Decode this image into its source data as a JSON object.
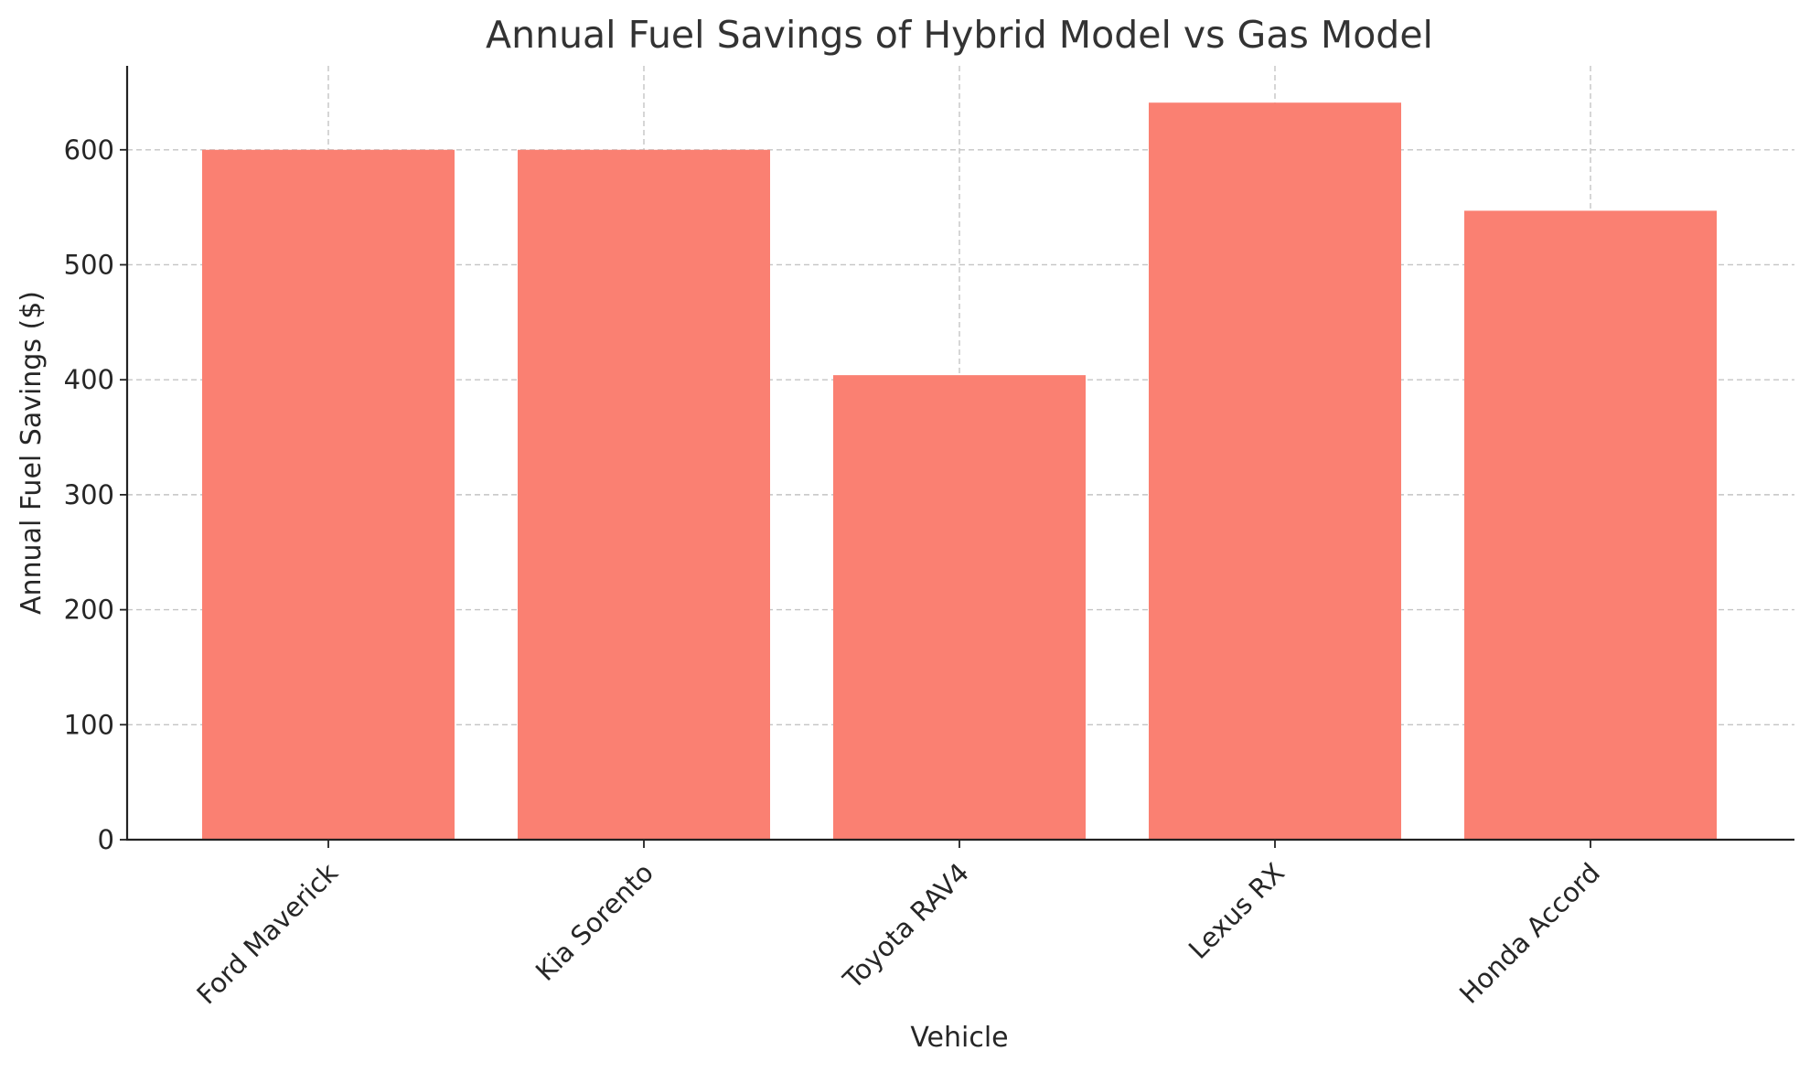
{
  "chart_data": {
    "type": "bar",
    "title": "Annual Fuel Savings of Hybrid Model vs Gas Model",
    "xlabel": "Vehicle",
    "ylabel": "Annual Fuel Savings ($)",
    "categories": [
      "Ford Maverick",
      "Kia Sorento",
      "Toyota RAV4",
      "Lexus RX",
      "Honda Accord"
    ],
    "values": [
      600,
      600,
      404,
      641,
      547
    ],
    "ylim": [
      0,
      673
    ],
    "yticks": [
      "0",
      "100",
      "200",
      "300",
      "400",
      "500",
      "600"
    ],
    "bar_color": "#fa8072",
    "grid": true,
    "spines": [
      "left",
      "bottom"
    ]
  }
}
